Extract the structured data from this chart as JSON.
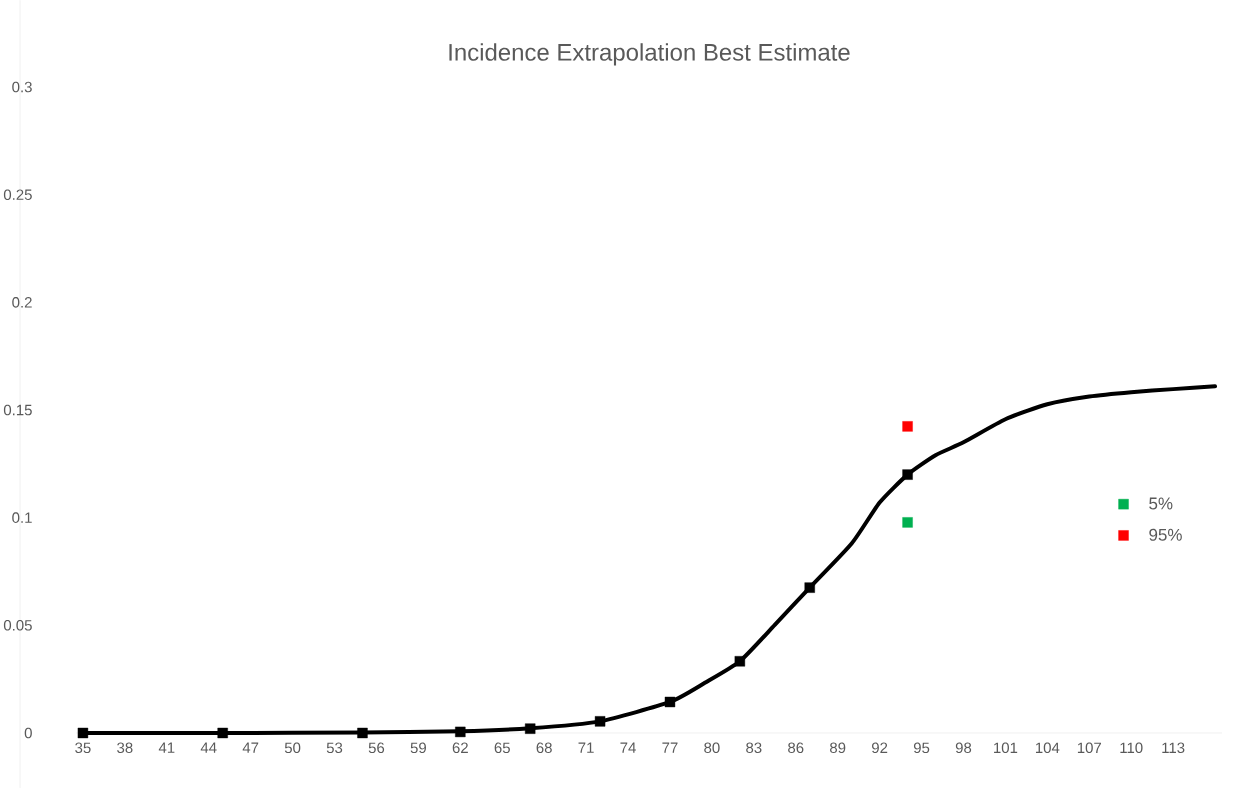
{
  "chart_data": {
    "type": "line",
    "title": "Incidence Extrapolation Best Estimate",
    "xlim": [
      34.5,
      116.5
    ],
    "xticks": [
      35,
      38,
      41,
      44,
      47,
      50,
      53,
      56,
      59,
      62,
      65,
      68,
      71,
      74,
      77,
      80,
      83,
      86,
      89,
      92,
      95,
      98,
      101,
      104,
      107,
      110,
      113
    ],
    "ylim": [
      0,
      0.3
    ],
    "yticks": [
      0,
      0.05,
      0.1,
      0.15,
      0.2,
      0.25,
      0.3
    ],
    "grid": false,
    "legend": "right",
    "series": [
      {
        "type": "line",
        "marker": "none",
        "color": "#000000",
        "x": [
          35,
          45,
          55,
          62,
          67,
          72,
          77,
          79.5,
          82,
          84.5,
          87,
          90,
          92,
          94,
          96,
          98,
          101,
          104,
          107,
          110,
          113,
          116
        ],
        "values": [
          0,
          0,
          0.0002,
          0.0008,
          0.0022,
          0.0054,
          0.0144,
          0.0233,
          0.0333,
          0.0502,
          0.0675,
          0.088,
          0.107,
          0.12,
          0.129,
          0.135,
          0.1457,
          0.1527,
          0.1563,
          0.1583,
          0.1597,
          0.161
        ]
      },
      {
        "type": "scatter",
        "marker": "square",
        "color": "#000000",
        "x": [
          35,
          45,
          55,
          62,
          67,
          72,
          77,
          82,
          87,
          94
        ],
        "values": [
          0,
          0,
          0,
          0.0005,
          0.002,
          0.0054,
          0.0144,
          0.0333,
          0.0675,
          0.12
        ]
      },
      {
        "type": "scatter",
        "marker": "square",
        "name": "5%",
        "color": "#00b050",
        "x": [
          94
        ],
        "values": [
          0.0978
        ]
      },
      {
        "type": "scatter",
        "marker": "square",
        "name": "95%",
        "color": "#ff0000",
        "x": [
          94
        ],
        "values": [
          0.1424
        ]
      }
    ]
  }
}
